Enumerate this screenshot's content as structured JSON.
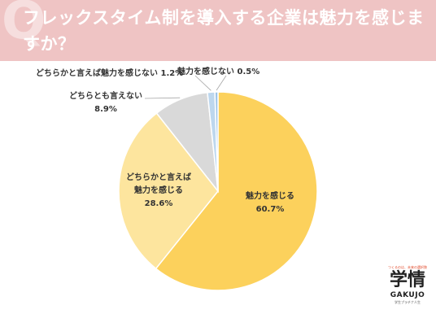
{
  "title": "フレックスタイム制を導入する企業は魅力を感じますか？",
  "chart_data": {
    "type": "pie",
    "title": "",
    "categories": [
      "魅力を感じる",
      "どちらかと言えば魅力を感じる",
      "どちらとも言えない",
      "どちらかと言えば魅力を感じない",
      "魅力を感じない"
    ],
    "values": [
      60.7,
      28.6,
      8.9,
      1.2,
      0.5
    ],
    "labels": [
      {
        "name": "魅力を感じる",
        "value": "60.7%"
      },
      {
        "name_line1": "どちらかと言えば",
        "name_line2": "魅力を感じる",
        "value": "28.6%"
      },
      {
        "name": "どちらとも言えない",
        "value": "8.9%"
      },
      {
        "name": "どちらかと言えば魅力を感じない",
        "value": "1.2%"
      },
      {
        "name": "魅力を感じない",
        "value": "0.5%"
      }
    ],
    "colors": [
      "#fcd15c",
      "#fde59e",
      "#d9d9d9",
      "#bdd7ee",
      "#9dc3e6"
    ],
    "start": "12 o'clock, clockwise"
  },
  "logo": {
    "tagline": "つくるのは、未来の選択肢",
    "kanji": "学情",
    "name": "GAKUJO",
    "sub": "学生プラチナ人生"
  }
}
